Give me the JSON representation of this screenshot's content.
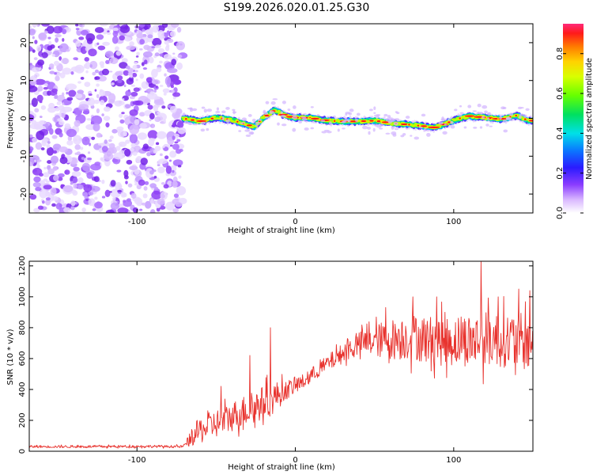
{
  "title": "S199.2026.020.01.25.G30",
  "chart_data": [
    {
      "type": "heatmap",
      "name": "spectrogram",
      "xlabel": "Height of straight line (km)",
      "ylabel": "Frequency (Hz)",
      "xlim": [
        -168,
        150
      ],
      "ylim": [
        -25,
        25
      ],
      "xticks": [
        -100,
        0,
        100
      ],
      "yticks": [
        -20,
        -10,
        0,
        10,
        20
      ],
      "noise_region_x": [
        -168,
        -71
      ],
      "signal_start_x": -71,
      "signal_center_track": [
        [
          -71,
          0.0
        ],
        [
          -60,
          -0.8
        ],
        [
          -50,
          0.2
        ],
        [
          -40,
          -0.4
        ],
        [
          -32,
          -1.5
        ],
        [
          -26,
          -2.2
        ],
        [
          -20,
          0.2
        ],
        [
          -13,
          2.2
        ],
        [
          -6,
          0.6
        ],
        [
          0,
          0.2
        ],
        [
          10,
          0.1
        ],
        [
          20,
          -0.6
        ],
        [
          30,
          -0.8
        ],
        [
          40,
          -0.8
        ],
        [
          50,
          -0.6
        ],
        [
          60,
          -1.2
        ],
        [
          70,
          -1.6
        ],
        [
          80,
          -2.0
        ],
        [
          88,
          -2.4
        ],
        [
          95,
          -1.4
        ],
        [
          102,
          -0.2
        ],
        [
          110,
          0.6
        ],
        [
          120,
          0.2
        ],
        [
          130,
          -0.2
        ],
        [
          140,
          0.8
        ],
        [
          147,
          -0.6
        ]
      ],
      "colorbar": {
        "label": "Normalized spectral amplitude",
        "range": [
          0.0,
          0.95
        ],
        "ticks": [
          0.0,
          0.2,
          0.4,
          0.6,
          0.8
        ],
        "tick_labels": [
          "0.0",
          "0.2",
          "0.4",
          "0.6",
          "0.8"
        ]
      }
    },
    {
      "type": "line",
      "name": "snr",
      "xlabel": "Height of straight line (km)",
      "ylabel": "SNR (10 * v/v)",
      "xlim": [
        -168,
        150
      ],
      "ylim": [
        0,
        1230
      ],
      "xticks": [
        -100,
        0,
        100
      ],
      "yticks": [
        0,
        200,
        400,
        600,
        800,
        1000,
        1200
      ],
      "color": "#e8322d",
      "envelope": {
        "x": [
          -168,
          -120,
          -95,
          -71,
          -62,
          -55,
          -45,
          -35,
          -25,
          -15,
          -5,
          5,
          15,
          25,
          35,
          45,
          55,
          65,
          75,
          85,
          95,
          105,
          115,
          125,
          135,
          150
        ],
        "mean": [
          30,
          30,
          32,
          30,
          120,
          160,
          200,
          250,
          290,
          340,
          400,
          450,
          530,
          600,
          670,
          710,
          720,
          730,
          740,
          720,
          710,
          720,
          720,
          730,
          720,
          700
        ],
        "spread": [
          8,
          8,
          8,
          8,
          80,
          90,
          95,
          100,
          110,
          110,
          60,
          50,
          50,
          60,
          70,
          90,
          120,
          140,
          150,
          160,
          160,
          170,
          180,
          180,
          180,
          190
        ]
      },
      "spikes": [
        {
          "x": -47,
          "y": 420
        },
        {
          "x": -29,
          "y": 620
        },
        {
          "x": -16,
          "y": 800
        },
        {
          "x": 57,
          "y": 930
        },
        {
          "x": 74,
          "y": 1000
        },
        {
          "x": 89,
          "y": 1000
        },
        {
          "x": 117,
          "y": 1230
        },
        {
          "x": 128,
          "y": 1000
        },
        {
          "x": 141,
          "y": 1050
        },
        {
          "x": 148,
          "y": 1040
        }
      ]
    }
  ]
}
